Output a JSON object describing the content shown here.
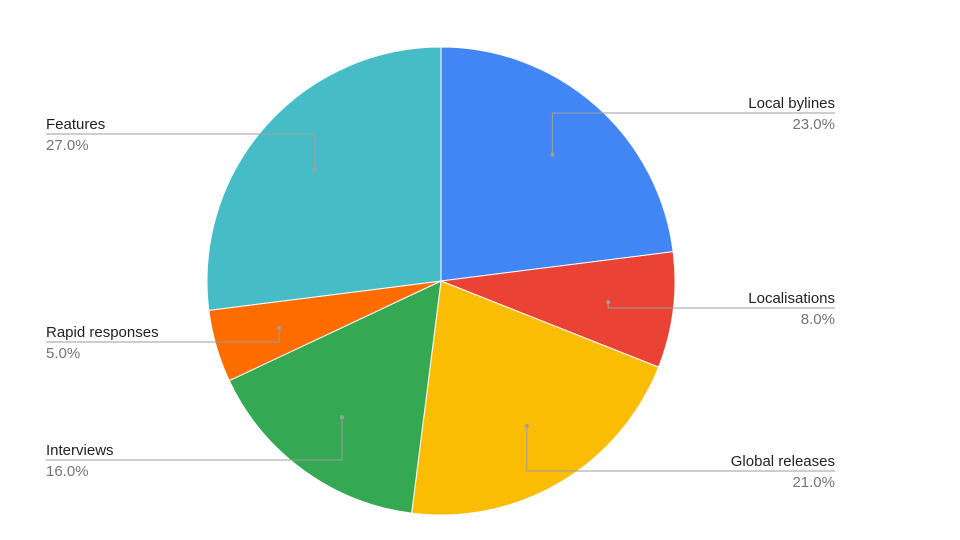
{
  "chart_data": {
    "type": "pie",
    "title": "",
    "categories": [
      "Local bylines",
      "Localisations",
      "Global releases",
      "Interviews",
      "Rapid responses",
      "Features"
    ],
    "values": [
      23.0,
      8.0,
      21.0,
      16.0,
      5.0,
      27.0
    ],
    "value_labels": [
      "23.0%",
      "8.0%",
      "21.0%",
      "16.0%",
      "5.0%",
      "27.0%"
    ],
    "colors": [
      "#4285F4",
      "#EA4335",
      "#FBBC04",
      "#34A853",
      "#FF6D01",
      "#46BDC6"
    ],
    "start_angle_deg": 0,
    "direction": "clockwise",
    "legend": "labeled slices"
  }
}
